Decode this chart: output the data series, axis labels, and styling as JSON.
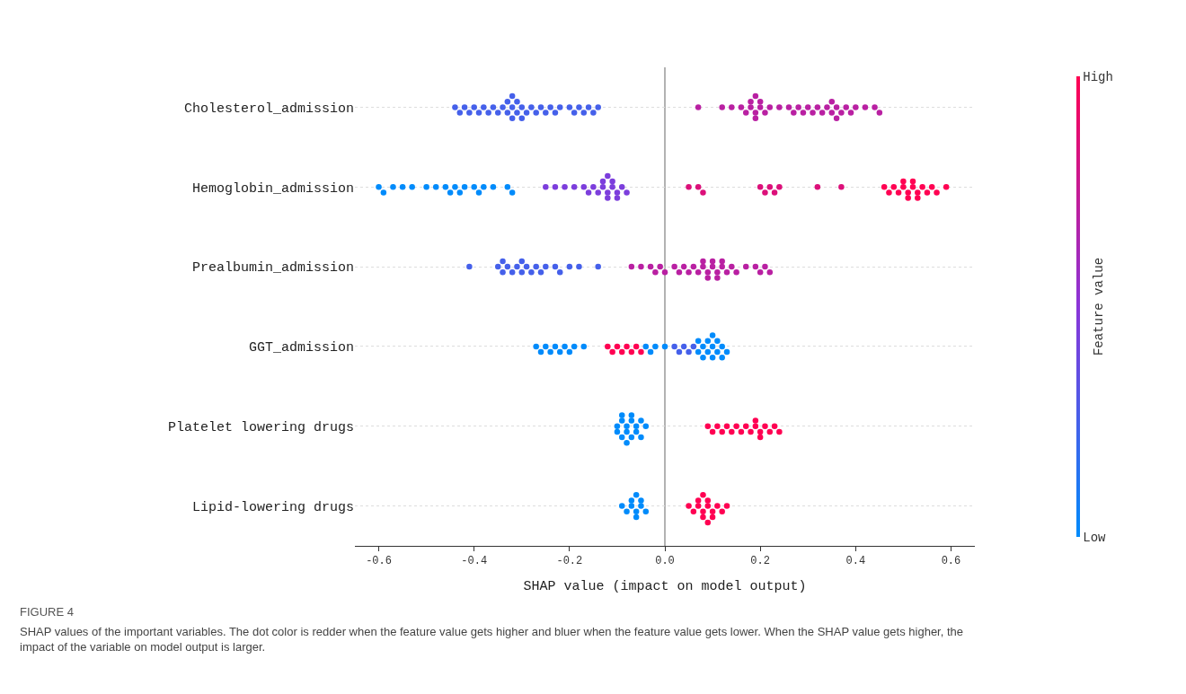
{
  "chart_data": {
    "type": "scatter",
    "orientation": "horizontal",
    "xlabel": "SHAP value (impact on model output)",
    "clabel": "Feature value",
    "clim": [
      0,
      1
    ],
    "cticks": [
      {
        "value": 0,
        "label": "Low"
      },
      {
        "value": 1,
        "label": "High"
      }
    ],
    "xlim": [
      -0.65,
      0.65
    ],
    "xticks": [
      -0.6,
      -0.4,
      -0.2,
      {
        "value": 0,
        "label": "0.0"
      },
      0.2,
      0.4,
      0.6
    ],
    "grid": "y",
    "marker": "circle",
    "categories": [
      "Cholesterol_admission",
      "Hemoglobin_admission",
      "Prealbumin_admission",
      "GGT_admission",
      "Platelet lowering drugs",
      "Lipid-lowering drugs"
    ],
    "ref_lines": [
      {
        "axis": "x",
        "value": 0,
        "color": "#999999"
      }
    ],
    "annotations": [
      "FIGURE 4",
      "SHAP values of the important variables. The dot color is redder when the feature value gets higher and bluer when the feature value gets lower. When the SHAP value gets higher, the impact of the variable on model output is larger."
    ],
    "series": [
      {
        "color": "#4560ea",
        "x": [
          "Cholesterol_admission",
          "Cholesterol_admission",
          "Cholesterol_admission",
          "Cholesterol_admission",
          "Cholesterol_admission",
          "Cholesterol_admission",
          "Cholesterol_admission",
          "Cholesterol_admission",
          "Cholesterol_admission",
          "Cholesterol_admission",
          "Cholesterol_admission",
          "Cholesterol_admission",
          "Cholesterol_admission",
          "Cholesterol_admission",
          "Cholesterol_admission",
          "Cholesterol_admission",
          "Cholesterol_admission",
          "Cholesterol_admission",
          "Cholesterol_admission",
          "Cholesterol_admission",
          "Cholesterol_admission",
          "Cholesterol_admission",
          "Cholesterol_admission",
          "Cholesterol_admission",
          "Cholesterol_admission",
          "Cholesterol_admission",
          "Cholesterol_admission",
          "Cholesterol_admission",
          "Cholesterol_admission",
          "Cholesterol_admission",
          "Cholesterol_admission",
          "Cholesterol_admission",
          "Cholesterol_admission",
          "Cholesterol_admission",
          "Cholesterol_admission"
        ],
        "values": [
          -0.44,
          -0.43,
          -0.42,
          -0.41,
          -0.4,
          -0.39,
          -0.38,
          -0.37,
          -0.36,
          -0.35,
          -0.34,
          -0.33,
          -0.33,
          -0.32,
          -0.32,
          -0.32,
          -0.31,
          -0.31,
          -0.3,
          -0.3,
          -0.29,
          -0.28,
          -0.27,
          -0.26,
          -0.25,
          -0.24,
          -0.23,
          -0.22,
          -0.2,
          -0.19,
          -0.18,
          -0.17,
          -0.16,
          -0.15,
          -0.14
        ]
      },
      {
        "color": "#b920a2",
        "x": [
          "Cholesterol_admission",
          "Cholesterol_admission",
          "Cholesterol_admission",
          "Cholesterol_admission",
          "Cholesterol_admission",
          "Cholesterol_admission",
          "Cholesterol_admission",
          "Cholesterol_admission",
          "Cholesterol_admission",
          "Cholesterol_admission",
          "Cholesterol_admission",
          "Cholesterol_admission",
          "Cholesterol_admission",
          "Cholesterol_admission",
          "Cholesterol_admission",
          "Cholesterol_admission",
          "Cholesterol_admission",
          "Cholesterol_admission",
          "Cholesterol_admission",
          "Cholesterol_admission",
          "Cholesterol_admission",
          "Cholesterol_admission",
          "Cholesterol_admission",
          "Cholesterol_admission",
          "Cholesterol_admission",
          "Cholesterol_admission",
          "Cholesterol_admission",
          "Cholesterol_admission",
          "Cholesterol_admission",
          "Cholesterol_admission",
          "Cholesterol_admission",
          "Cholesterol_admission",
          "Cholesterol_admission",
          "Cholesterol_admission",
          "Cholesterol_admission"
        ],
        "values": [
          0.07,
          0.12,
          0.14,
          0.16,
          0.17,
          0.18,
          0.18,
          0.19,
          0.19,
          0.19,
          0.2,
          0.2,
          0.21,
          0.22,
          0.24,
          0.26,
          0.27,
          0.28,
          0.29,
          0.3,
          0.31,
          0.32,
          0.33,
          0.34,
          0.35,
          0.35,
          0.36,
          0.36,
          0.37,
          0.38,
          0.39,
          0.4,
          0.42,
          0.44,
          0.45
        ]
      },
      {
        "color": "#008bfb",
        "x": [
          "Hemoglobin_admission",
          "Hemoglobin_admission",
          "Hemoglobin_admission",
          "Hemoglobin_admission",
          "Hemoglobin_admission",
          "Hemoglobin_admission",
          "Hemoglobin_admission",
          "Hemoglobin_admission",
          "Hemoglobin_admission",
          "Hemoglobin_admission",
          "Hemoglobin_admission",
          "Hemoglobin_admission",
          "Hemoglobin_admission",
          "Hemoglobin_admission",
          "Hemoglobin_admission",
          "Hemoglobin_admission",
          "Hemoglobin_admission",
          "Hemoglobin_admission"
        ],
        "values": [
          -0.6,
          -0.59,
          -0.57,
          -0.55,
          -0.53,
          -0.5,
          -0.48,
          -0.46,
          -0.45,
          -0.44,
          -0.43,
          -0.42,
          -0.4,
          -0.39,
          -0.38,
          -0.36,
          -0.33,
          -0.32
        ]
      },
      {
        "color": "#7c3edc",
        "x": [
          "Hemoglobin_admission",
          "Hemoglobin_admission",
          "Hemoglobin_admission",
          "Hemoglobin_admission",
          "Hemoglobin_admission",
          "Hemoglobin_admission",
          "Hemoglobin_admission",
          "Hemoglobin_admission",
          "Hemoglobin_admission",
          "Hemoglobin_admission",
          "Hemoglobin_admission",
          "Hemoglobin_admission",
          "Hemoglobin_admission",
          "Hemoglobin_admission",
          "Hemoglobin_admission",
          "Hemoglobin_admission",
          "Hemoglobin_admission",
          "Hemoglobin_admission",
          "Hemoglobin_admission"
        ],
        "values": [
          -0.25,
          -0.23,
          -0.21,
          -0.19,
          -0.17,
          -0.16,
          -0.15,
          -0.14,
          -0.13,
          -0.13,
          -0.12,
          -0.12,
          -0.12,
          -0.11,
          -0.11,
          -0.1,
          -0.1,
          -0.09,
          -0.08
        ]
      },
      {
        "color": "#dc107a",
        "x": [
          "Hemoglobin_admission",
          "Hemoglobin_admission",
          "Hemoglobin_admission",
          "Hemoglobin_admission",
          "Hemoglobin_admission",
          "Hemoglobin_admission",
          "Hemoglobin_admission",
          "Hemoglobin_admission",
          "Hemoglobin_admission",
          "Hemoglobin_admission"
        ],
        "values": [
          0.05,
          0.07,
          0.08,
          0.2,
          0.21,
          0.22,
          0.23,
          0.24,
          0.32,
          0.37
        ]
      },
      {
        "color": "#ff0052",
        "x": [
          "Hemoglobin_admission",
          "Hemoglobin_admission",
          "Hemoglobin_admission",
          "Hemoglobin_admission",
          "Hemoglobin_admission",
          "Hemoglobin_admission",
          "Hemoglobin_admission",
          "Hemoglobin_admission",
          "Hemoglobin_admission",
          "Hemoglobin_admission",
          "Hemoglobin_admission",
          "Hemoglobin_admission",
          "Hemoglobin_admission",
          "Hemoglobin_admission",
          "Hemoglobin_admission",
          "Hemoglobin_admission",
          "Hemoglobin_admission"
        ],
        "values": [
          0.46,
          0.47,
          0.48,
          0.49,
          0.5,
          0.5,
          0.51,
          0.51,
          0.52,
          0.52,
          0.53,
          0.53,
          0.54,
          0.55,
          0.56,
          0.57,
          0.59
        ]
      },
      {
        "color": "#4560ea",
        "x": [
          "Prealbumin_admission",
          "Prealbumin_admission",
          "Prealbumin_admission",
          "Prealbumin_admission",
          "Prealbumin_admission",
          "Prealbumin_admission",
          "Prealbumin_admission",
          "Prealbumin_admission",
          "Prealbumin_admission",
          "Prealbumin_admission",
          "Prealbumin_admission",
          "Prealbumin_admission",
          "Prealbumin_admission",
          "Prealbumin_admission",
          "Prealbumin_admission",
          "Prealbumin_admission",
          "Prealbumin_admission",
          "Prealbumin_admission",
          "Prealbumin_admission"
        ],
        "values": [
          -0.41,
          -0.35,
          -0.34,
          -0.34,
          -0.33,
          -0.32,
          -0.31,
          -0.3,
          -0.3,
          -0.29,
          -0.28,
          -0.27,
          -0.26,
          -0.25,
          -0.23,
          -0.22,
          -0.2,
          -0.18,
          -0.14
        ]
      },
      {
        "color": "#b920a2",
        "x": [
          "Prealbumin_admission",
          "Prealbumin_admission",
          "Prealbumin_admission",
          "Prealbumin_admission",
          "Prealbumin_admission",
          "Prealbumin_admission",
          "Prealbumin_admission",
          "Prealbumin_admission",
          "Prealbumin_admission",
          "Prealbumin_admission",
          "Prealbumin_admission",
          "Prealbumin_admission",
          "Prealbumin_admission",
          "Prealbumin_admission",
          "Prealbumin_admission",
          "Prealbumin_admission",
          "Prealbumin_admission",
          "Prealbumin_admission",
          "Prealbumin_admission",
          "Prealbumin_admission",
          "Prealbumin_admission",
          "Prealbumin_admission",
          "Prealbumin_admission",
          "Prealbumin_admission",
          "Prealbumin_admission",
          "Prealbumin_admission",
          "Prealbumin_admission",
          "Prealbumin_admission",
          "Prealbumin_admission",
          "Prealbumin_admission"
        ],
        "values": [
          -0.07,
          -0.05,
          -0.03,
          -0.02,
          -0.01,
          0.0,
          0.02,
          0.03,
          0.04,
          0.05,
          0.06,
          0.07,
          0.08,
          0.08,
          0.09,
          0.09,
          0.1,
          0.1,
          0.11,
          0.11,
          0.12,
          0.12,
          0.13,
          0.14,
          0.15,
          0.17,
          0.19,
          0.2,
          0.21,
          0.22
        ]
      },
      {
        "color": "#008bfb",
        "x": [
          "GGT_admission",
          "GGT_admission",
          "GGT_admission",
          "GGT_admission",
          "GGT_admission",
          "GGT_admission",
          "GGT_admission",
          "GGT_admission",
          "GGT_admission",
          "GGT_admission",
          "GGT_admission",
          "GGT_admission",
          "GGT_admission",
          "GGT_admission",
          "GGT_admission",
          "GGT_admission",
          "GGT_admission",
          "GGT_admission",
          "GGT_admission",
          "GGT_admission",
          "GGT_admission",
          "GGT_admission",
          "GGT_admission",
          "GGT_admission",
          "GGT_admission",
          "GGT_admission",
          "GGT_admission",
          "GGT_admission"
        ],
        "values": [
          -0.27,
          -0.26,
          -0.25,
          -0.24,
          -0.23,
          -0.22,
          -0.21,
          -0.2,
          -0.19,
          -0.17,
          -0.04,
          -0.03,
          -0.02,
          0.0,
          0.07,
          0.07,
          0.08,
          0.08,
          0.09,
          0.09,
          0.1,
          0.1,
          0.1,
          0.11,
          0.11,
          0.12,
          0.12,
          0.13
        ]
      },
      {
        "color": "#ff0052",
        "x": [
          "GGT_admission",
          "GGT_admission",
          "GGT_admission",
          "GGT_admission",
          "GGT_admission",
          "GGT_admission",
          "GGT_admission",
          "GGT_admission"
        ],
        "values": [
          -0.12,
          -0.11,
          -0.1,
          -0.09,
          -0.08,
          -0.07,
          -0.06,
          -0.05
        ]
      },
      {
        "color": "#4560ea",
        "x": [
          "GGT_admission",
          "GGT_admission",
          "GGT_admission",
          "GGT_admission",
          "GGT_admission"
        ],
        "values": [
          0.02,
          0.03,
          0.04,
          0.05,
          0.06
        ]
      },
      {
        "color": "#008bfb",
        "x": [
          "Platelet lowering drugs",
          "Platelet lowering drugs",
          "Platelet lowering drugs",
          "Platelet lowering drugs",
          "Platelet lowering drugs",
          "Platelet lowering drugs",
          "Platelet lowering drugs",
          "Platelet lowering drugs",
          "Platelet lowering drugs",
          "Platelet lowering drugs",
          "Platelet lowering drugs",
          "Platelet lowering drugs",
          "Platelet lowering drugs",
          "Platelet lowering drugs",
          "Platelet lowering drugs",
          "Platelet lowering drugs"
        ],
        "values": [
          -0.1,
          -0.1,
          -0.09,
          -0.09,
          -0.09,
          -0.08,
          -0.08,
          -0.08,
          -0.07,
          -0.07,
          -0.07,
          -0.06,
          -0.06,
          -0.05,
          -0.05,
          -0.04
        ]
      },
      {
        "color": "#ff0052",
        "x": [
          "Platelet lowering drugs",
          "Platelet lowering drugs",
          "Platelet lowering drugs",
          "Platelet lowering drugs",
          "Platelet lowering drugs",
          "Platelet lowering drugs",
          "Platelet lowering drugs",
          "Platelet lowering drugs",
          "Platelet lowering drugs",
          "Platelet lowering drugs",
          "Platelet lowering drugs",
          "Platelet lowering drugs",
          "Platelet lowering drugs",
          "Platelet lowering drugs",
          "Platelet lowering drugs",
          "Platelet lowering drugs",
          "Platelet lowering drugs",
          "Platelet lowering drugs"
        ],
        "values": [
          0.09,
          0.1,
          0.11,
          0.12,
          0.13,
          0.14,
          0.15,
          0.16,
          0.17,
          0.18,
          0.19,
          0.19,
          0.2,
          0.2,
          0.21,
          0.22,
          0.23,
          0.24
        ]
      },
      {
        "color": "#008bfb",
        "x": [
          "Lipid-lowering drugs",
          "Lipid-lowering drugs",
          "Lipid-lowering drugs",
          "Lipid-lowering drugs",
          "Lipid-lowering drugs",
          "Lipid-lowering drugs",
          "Lipid-lowering drugs",
          "Lipid-lowering drugs",
          "Lipid-lowering drugs",
          "Lipid-lowering drugs"
        ],
        "values": [
          -0.09,
          -0.08,
          -0.07,
          -0.07,
          -0.06,
          -0.06,
          -0.06,
          -0.05,
          -0.05,
          -0.04
        ]
      },
      {
        "color": "#ff0052",
        "x": [
          "Lipid-lowering drugs",
          "Lipid-lowering drugs",
          "Lipid-lowering drugs",
          "Lipid-lowering drugs",
          "Lipid-lowering drugs",
          "Lipid-lowering drugs",
          "Lipid-lowering drugs",
          "Lipid-lowering drugs",
          "Lipid-lowering drugs",
          "Lipid-lowering drugs",
          "Lipid-lowering drugs",
          "Lipid-lowering drugs",
          "Lipid-lowering drugs",
          "Lipid-lowering drugs",
          "Lipid-lowering drugs"
        ],
        "values": [
          0.05,
          0.06,
          0.07,
          0.07,
          0.08,
          0.08,
          0.08,
          0.09,
          0.09,
          0.09,
          0.1,
          0.1,
          0.11,
          0.12,
          0.13
        ]
      }
    ]
  }
}
